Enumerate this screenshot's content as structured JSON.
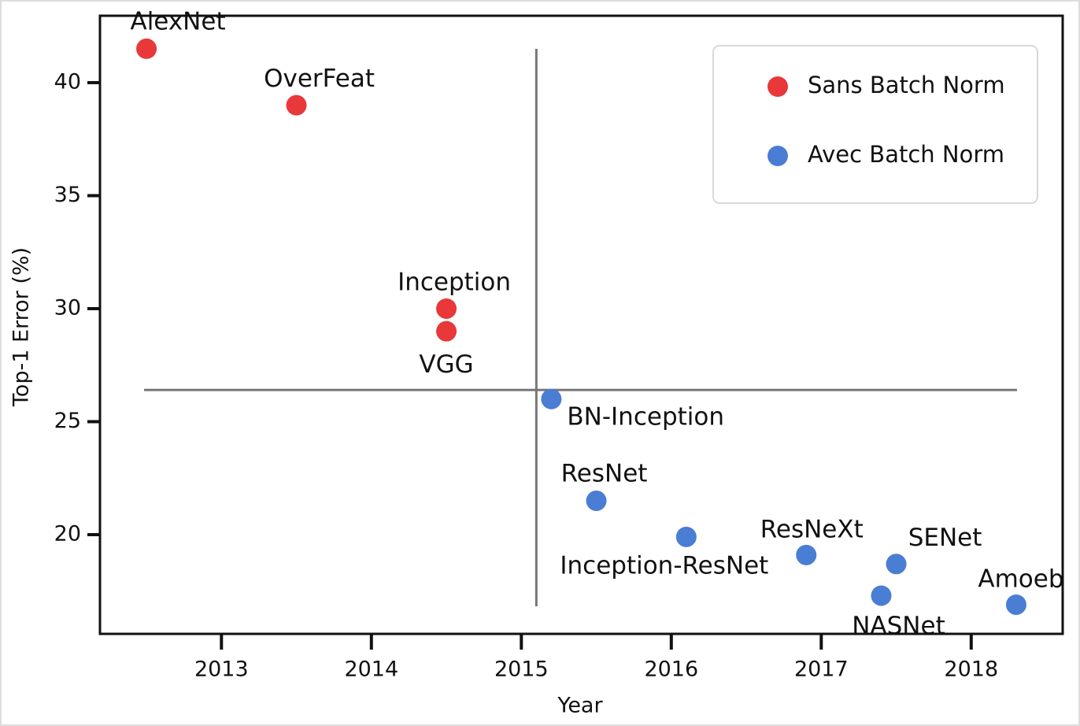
{
  "chart_data": {
    "type": "scatter",
    "x_label": "Year",
    "y_label": "Top-1 Error (%)",
    "xlim": [
      2012.19,
      2018.61
    ],
    "ylim": [
      15.61,
      42.96
    ],
    "xticks": [
      2013,
      2014,
      2015,
      2016,
      2017,
      2018
    ],
    "yticks": [
      20,
      25,
      30,
      35,
      40
    ],
    "legend": "upper right",
    "hline": 26.4,
    "vline": 2015.1,
    "series": [
      {
        "name": "Sans Batch Norm",
        "color": "#e8383a",
        "labels": [
          "AlexNet",
          "OverFeat",
          "Inception",
          "VGG"
        ],
        "x": [
          2012.5,
          2013.5,
          2014.5,
          2014.5
        ],
        "values": [
          41.5,
          39,
          30,
          29
        ]
      },
      {
        "name": "Avec Batch Norm",
        "color": "#4a7dd4",
        "labels": [
          "BN-Inception",
          "ResNet",
          "Inception-ResNet",
          "ResNeXt",
          "SENet",
          "NASNet",
          "Amoeb"
        ],
        "x": [
          2015.2,
          2015.5,
          2016.1,
          2016.9,
          2017.5,
          2017.4,
          2018.3
        ],
        "values": [
          26,
          21.5,
          19.9,
          19.1,
          18.7,
          17.3,
          16.9
        ]
      }
    ]
  }
}
